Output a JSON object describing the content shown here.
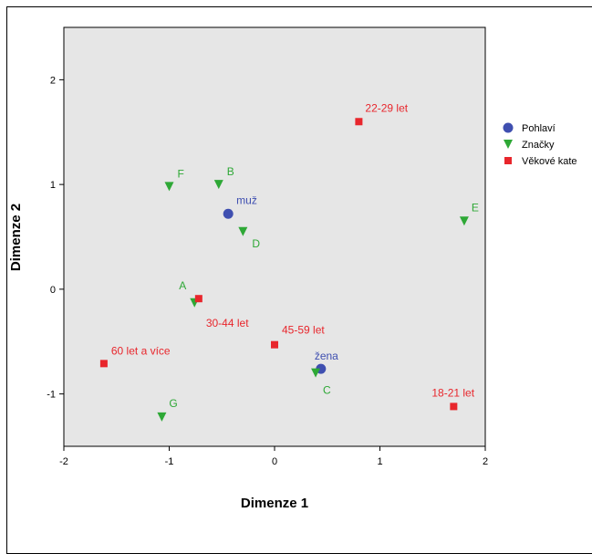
{
  "chart_data": {
    "type": "scatter",
    "title": "",
    "xlabel": "Dimenze 1",
    "ylabel": "Dimenze 2",
    "xlim": [
      -2,
      2
    ],
    "ylim": [
      -1.5,
      2.5
    ],
    "xticks": [
      "-2",
      "-1",
      "0",
      "1",
      "2"
    ],
    "yticks": [
      "-1",
      "0",
      "1",
      "2"
    ],
    "grid": false,
    "background": "#e6e6e6",
    "legend_position": "right",
    "series": [
      {
        "name": "Pohlaví",
        "marker": "circle",
        "color": "#3f4fb0",
        "points": [
          {
            "label": "muž",
            "x": -0.44,
            "y": 0.72
          },
          {
            "label": "žena",
            "x": 0.44,
            "y": -0.76
          }
        ]
      },
      {
        "name": "Značky",
        "marker": "triangle-down",
        "color": "#2ea836",
        "points": [
          {
            "label": "F",
            "x": -1.0,
            "y": 0.98
          },
          {
            "label": "B",
            "x": -0.53,
            "y": 1.0
          },
          {
            "label": "D",
            "x": -0.3,
            "y": 0.55
          },
          {
            "label": "E",
            "x": 1.8,
            "y": 0.65
          },
          {
            "label": "A",
            "x": -0.76,
            "y": -0.13
          },
          {
            "label": "C",
            "x": 0.39,
            "y": -0.8
          },
          {
            "label": "G",
            "x": -1.07,
            "y": -1.22
          }
        ]
      },
      {
        "name": "Věkové kate",
        "marker": "square",
        "color": "#e8262c",
        "points": [
          {
            "label": "22-29 let",
            "x": 0.8,
            "y": 1.6
          },
          {
            "label": "30-44 let",
            "x": -0.72,
            "y": -0.09
          },
          {
            "label": "45-59 let",
            "x": 0.0,
            "y": -0.53
          },
          {
            "label": "60 let a více",
            "x": -1.62,
            "y": -0.71
          },
          {
            "label": "18-21 let",
            "x": 1.7,
            "y": -1.12
          }
        ]
      }
    ]
  }
}
